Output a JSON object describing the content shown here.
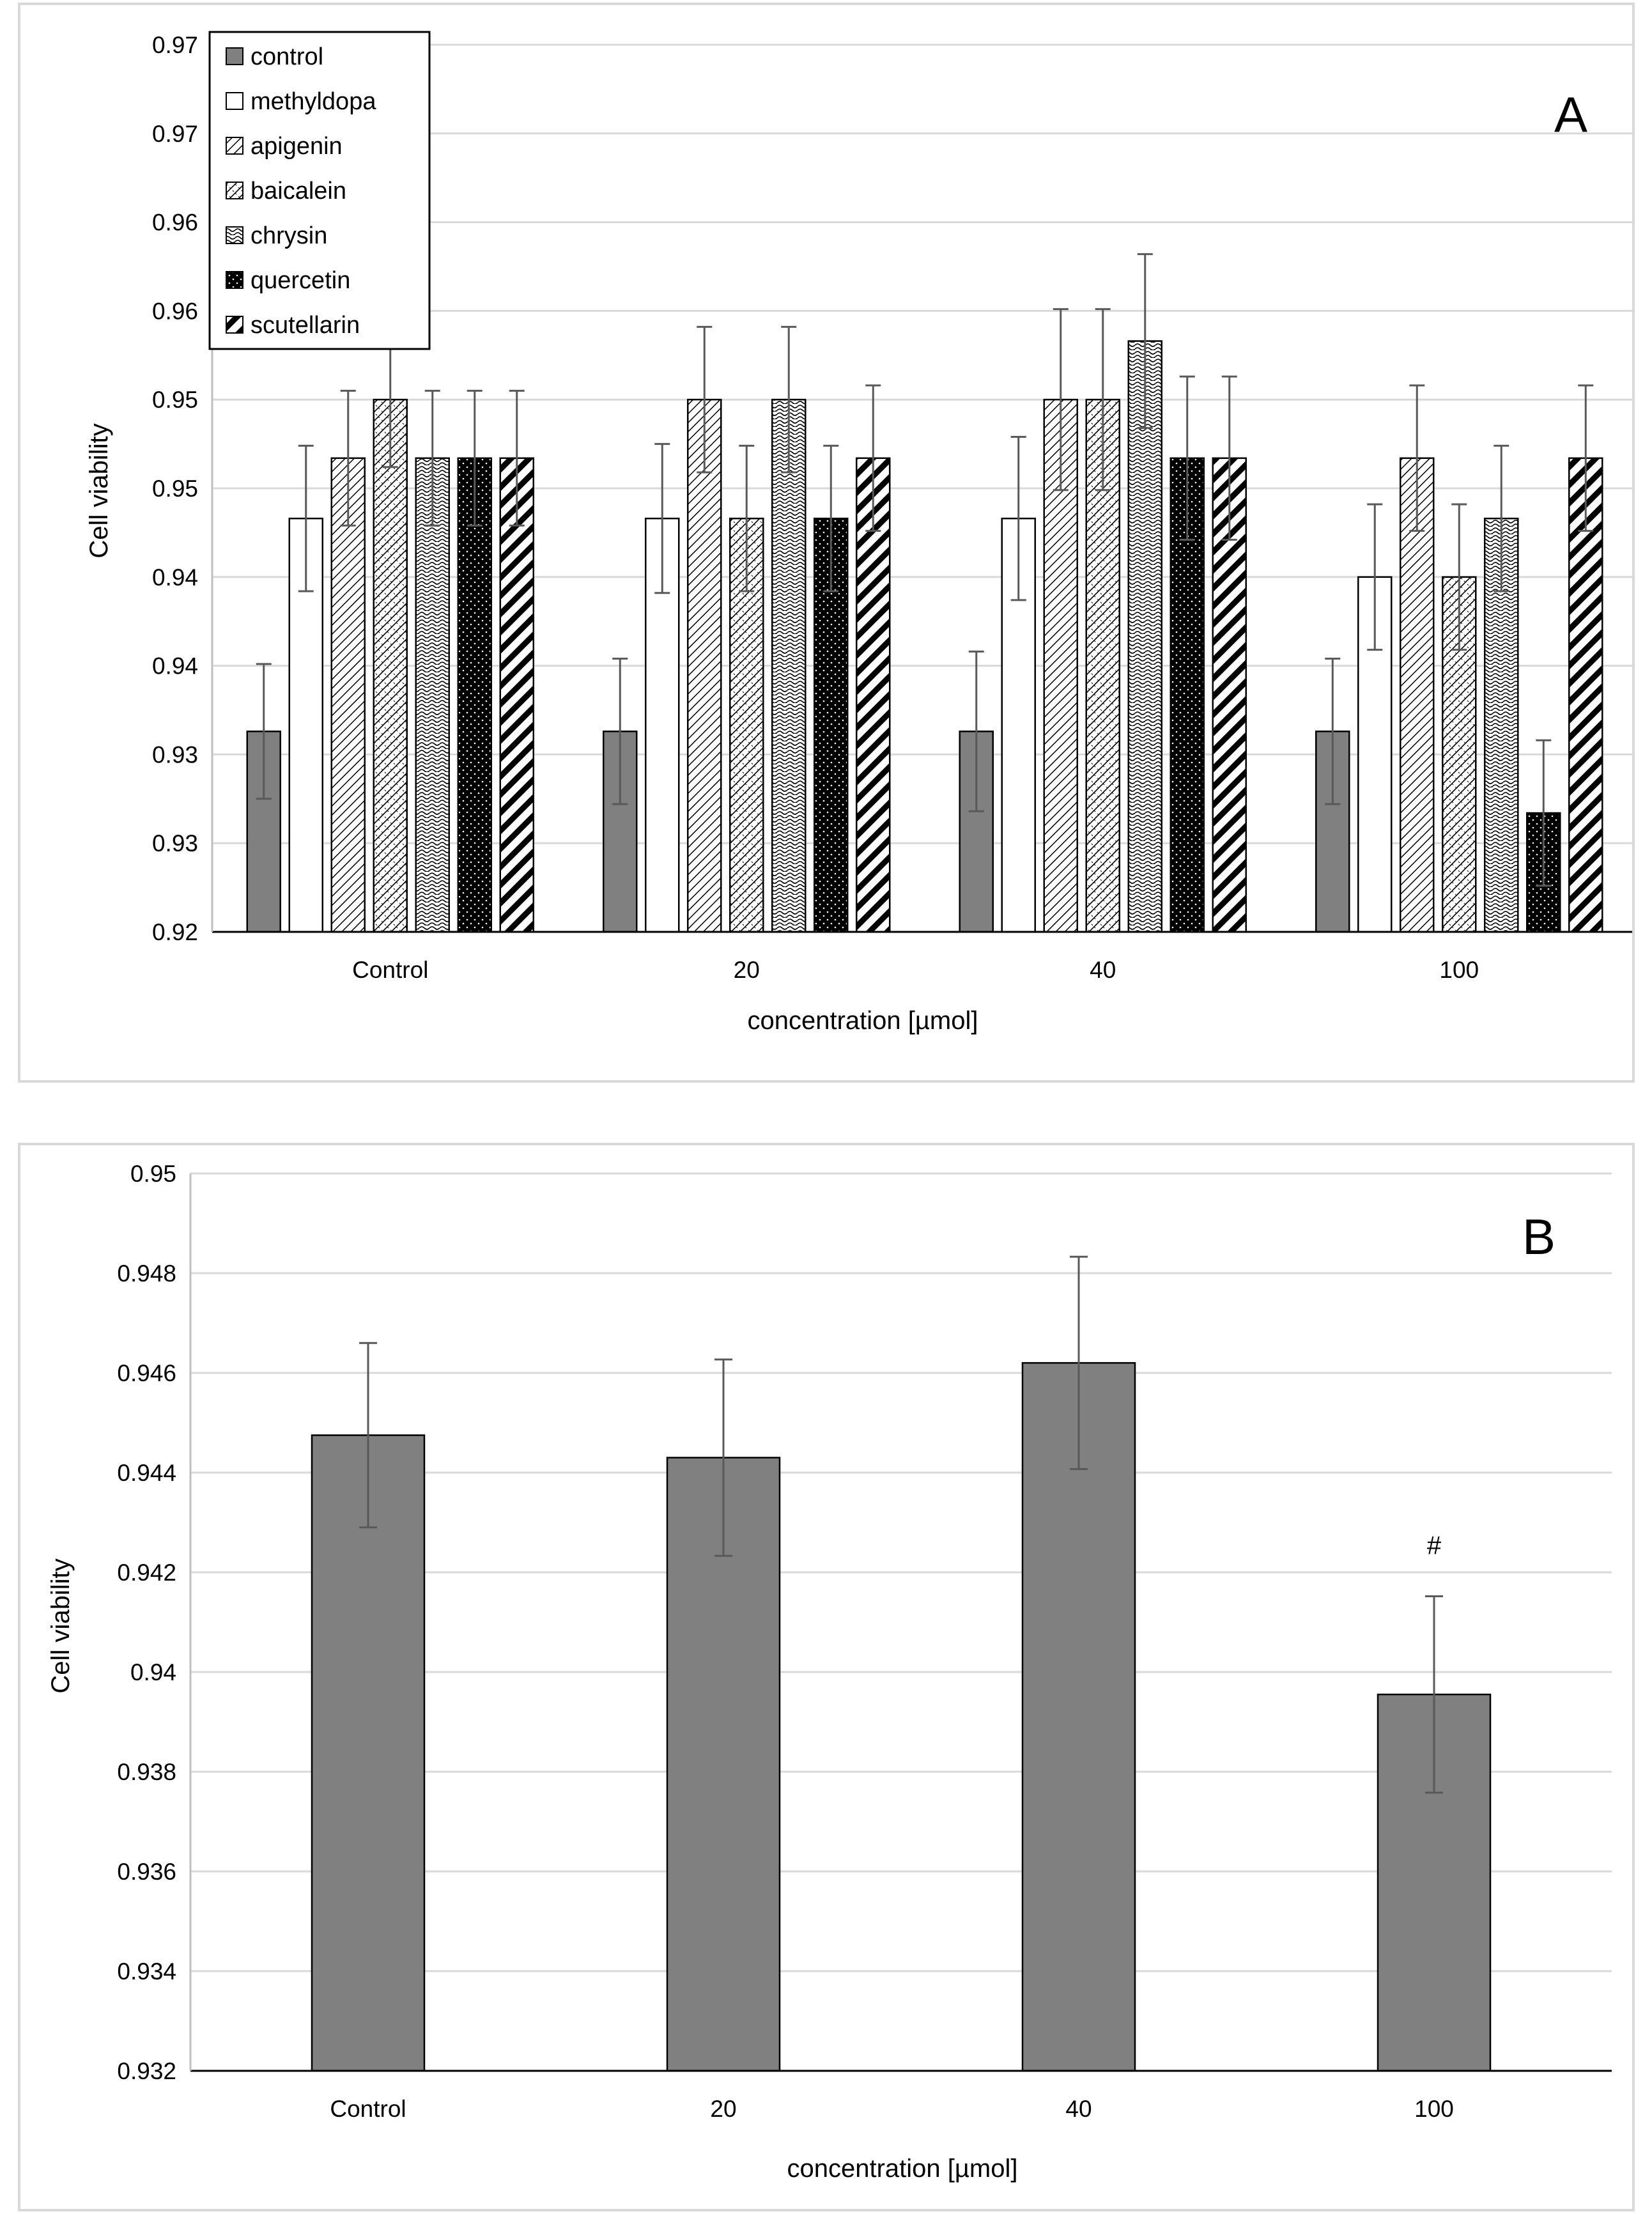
{
  "chart_data": [
    {
      "type": "bar",
      "panel_label": "A",
      "xlabel": "concentration [µmol]",
      "ylabel": "Cell viability",
      "ylim": [
        0.92,
        0.97
      ],
      "y_tick_values": [
        0.92,
        0.925,
        0.93,
        0.935,
        0.94,
        0.945,
        0.95,
        0.955,
        0.96,
        0.965,
        0.97
      ],
      "y_tick_labels": [
        "0.92",
        "0.93",
        "0.93",
        "0.94",
        "0.94",
        "0.95",
        "0.95",
        "0.96",
        "0.96",
        "0.97",
        "0.97"
      ],
      "categories": [
        "Control",
        "20",
        "40",
        "100"
      ],
      "legend_position": "top-left",
      "grid": true,
      "series": [
        {
          "name": "control",
          "pattern": "solid-gray",
          "values": [
            0.9313,
            0.9313,
            0.9313,
            0.9313
          ],
          "errors": [
            0.0038,
            0.0041,
            0.0045,
            0.0041
          ]
        },
        {
          "name": "methyldopa",
          "pattern": "white",
          "values": [
            0.9433,
            0.9433,
            0.9433,
            0.94
          ],
          "errors": [
            0.0041,
            0.0042,
            0.0046,
            0.0041
          ]
        },
        {
          "name": "apigenin",
          "pattern": "diagonal-fine",
          "values": [
            0.9467,
            0.95,
            0.95,
            0.9467
          ],
          "errors": [
            0.0038,
            0.0041,
            0.0051,
            0.0041
          ]
        },
        {
          "name": "baicalein",
          "pattern": "crosshatch-light",
          "values": [
            0.95,
            0.9433,
            0.95,
            0.94
          ],
          "errors": [
            0.0038,
            0.0041,
            0.0051,
            0.0041
          ]
        },
        {
          "name": "chrysin",
          "pattern": "wave",
          "values": [
            0.9467,
            0.95,
            0.9533,
            0.9433
          ],
          "errors": [
            0.0038,
            0.0041,
            0.0049,
            0.0041
          ]
        },
        {
          "name": "quercetin",
          "pattern": "black-dots",
          "values": [
            0.9467,
            0.9433,
            0.9467,
            0.9267
          ],
          "errors": [
            0.0038,
            0.0041,
            0.0046,
            0.0041
          ]
        },
        {
          "name": "scutellarin",
          "pattern": "diagonal-bold",
          "values": [
            0.9467,
            0.9467,
            0.9467,
            0.9467
          ],
          "errors": [
            0.0038,
            0.0041,
            0.0046,
            0.0041
          ]
        }
      ]
    },
    {
      "type": "bar",
      "panel_label": "B",
      "xlabel": "concentration [µmol]",
      "ylabel": "Cell viability",
      "ylim": [
        0.932,
        0.95
      ],
      "y_tick_values": [
        0.932,
        0.934,
        0.936,
        0.938,
        0.94,
        0.942,
        0.944,
        0.946,
        0.948,
        0.95
      ],
      "y_tick_labels": [
        "0.932",
        "0.934",
        "0.936",
        "0.938",
        "0.94",
        "0.942",
        "0.944",
        "0.946",
        "0.948",
        "0.95"
      ],
      "categories": [
        "Control",
        "20",
        "40",
        "100"
      ],
      "grid": true,
      "series": [
        {
          "name": "cell viability",
          "values": [
            0.94475,
            0.9443,
            0.9462,
            0.93955
          ],
          "errors": [
            0.00185,
            0.00197,
            0.00213,
            0.00197
          ]
        }
      ],
      "annotations": [
        {
          "category": "100",
          "text": "#"
        }
      ]
    }
  ]
}
